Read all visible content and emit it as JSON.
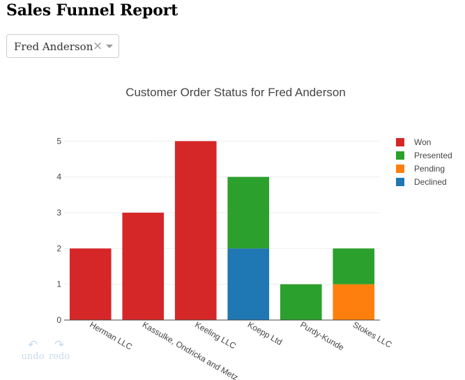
{
  "page": {
    "title": "Sales Funnel Report"
  },
  "selector": {
    "value": "Fred Anderson",
    "clear_symbol": "×"
  },
  "modebar": {
    "undo_label": "undo",
    "redo_label": "redo",
    "undo_icon": "undo-icon",
    "redo_icon": "redo-icon"
  },
  "chart_data": {
    "type": "bar",
    "barmode": "stack",
    "title": "Customer Order Status for Fred Anderson",
    "xlabel": "",
    "ylabel": "",
    "categories": [
      "Herman LLC",
      "Kassulke, Ondricka and Metz",
      "Keeling LLC",
      "Koepp Ltd",
      "Purdy-Kunde",
      "Stokes LLC"
    ],
    "series": [
      {
        "name": "Won",
        "color": "#d62728",
        "values": [
          2,
          3,
          5,
          0,
          0,
          0
        ]
      },
      {
        "name": "Presented",
        "color": "#2ca02c",
        "values": [
          0,
          0,
          0,
          2,
          1,
          1
        ]
      },
      {
        "name": "Pending",
        "color": "#ff7f0e",
        "values": [
          0,
          0,
          0,
          0,
          0,
          1
        ]
      },
      {
        "name": "Declined",
        "color": "#1f77b4",
        "values": [
          0,
          0,
          0,
          2,
          0,
          0
        ]
      }
    ],
    "stack_order": [
      "Declined",
      "Pending",
      "Presented",
      "Won"
    ],
    "ylim": [
      0,
      5.3
    ],
    "yticks": [
      0,
      1,
      2,
      3,
      4,
      5
    ],
    "grid": true,
    "legend_position": "right"
  }
}
